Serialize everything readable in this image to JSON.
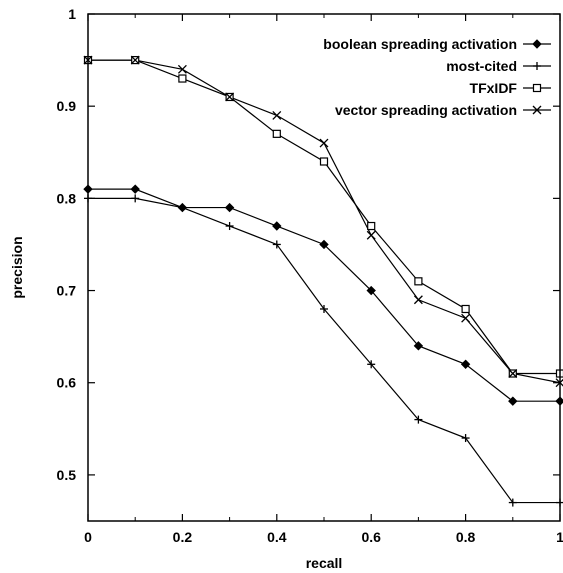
{
  "chart_data": {
    "type": "line",
    "xlabel": "recall",
    "ylabel": "precision",
    "xlim": [
      0,
      1
    ],
    "ylim": [
      0.45,
      1
    ],
    "x_ticks": [
      "0",
      "0.2",
      "0.4",
      "0.6",
      "0.8",
      "1"
    ],
    "y_ticks": [
      "0.5",
      "0.6",
      "0.7",
      "0.8",
      "0.9",
      "1"
    ],
    "x": [
      0,
      0.1,
      0.2,
      0.3,
      0.4,
      0.5,
      0.6,
      0.7,
      0.8,
      0.9,
      1.0
    ],
    "legend_position": "top-right",
    "series": [
      {
        "name": "boolean spreading activation",
        "marker": "diamond",
        "values": [
          0.81,
          0.81,
          0.79,
          0.79,
          0.77,
          0.75,
          0.7,
          0.64,
          0.62,
          0.58,
          0.58
        ]
      },
      {
        "name": "most-cited",
        "marker": "plus",
        "values": [
          0.8,
          0.8,
          0.79,
          0.77,
          0.75,
          0.68,
          0.62,
          0.56,
          0.54,
          0.47,
          0.47
        ]
      },
      {
        "name": "TFxIDF",
        "marker": "square",
        "values": [
          0.95,
          0.95,
          0.93,
          0.91,
          0.87,
          0.84,
          0.77,
          0.71,
          0.68,
          0.61,
          0.61
        ]
      },
      {
        "name": "vector spreading activation",
        "marker": "cross",
        "values": [
          0.95,
          0.95,
          0.94,
          0.91,
          0.89,
          0.86,
          0.76,
          0.69,
          0.67,
          0.61,
          0.6
        ]
      }
    ]
  }
}
